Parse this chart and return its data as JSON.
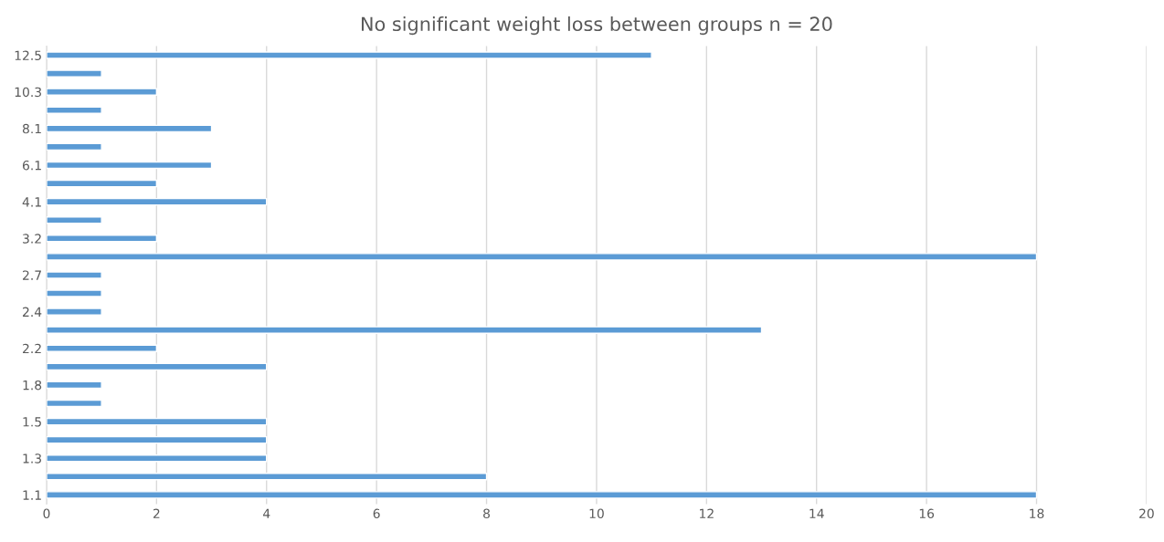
{
  "chart_data": {
    "type": "bar",
    "orientation": "horizontal",
    "title": "No significant weight loss between groups n = 20",
    "categories": [
      "12.5",
      null,
      "10.3",
      null,
      "8.1",
      null,
      "6.1",
      null,
      "4.1",
      null,
      "3.2",
      null,
      "2.7",
      null,
      "2.4",
      null,
      "2.2",
      null,
      "1.8",
      null,
      "1.5",
      null,
      "1.3",
      null,
      "1.1"
    ],
    "values": [
      11,
      1,
      2,
      1,
      3,
      1,
      3,
      2,
      4,
      1,
      2,
      18,
      1,
      1,
      1,
      13,
      2,
      4,
      1,
      1,
      4,
      4,
      4,
      8,
      18
    ],
    "color": "#5b9bd5",
    "xlim": [
      0,
      20
    ],
    "xticks": [
      0,
      2,
      4,
      6,
      8,
      10,
      12,
      14,
      16,
      18,
      20
    ],
    "grid": "x",
    "legend": false
  }
}
